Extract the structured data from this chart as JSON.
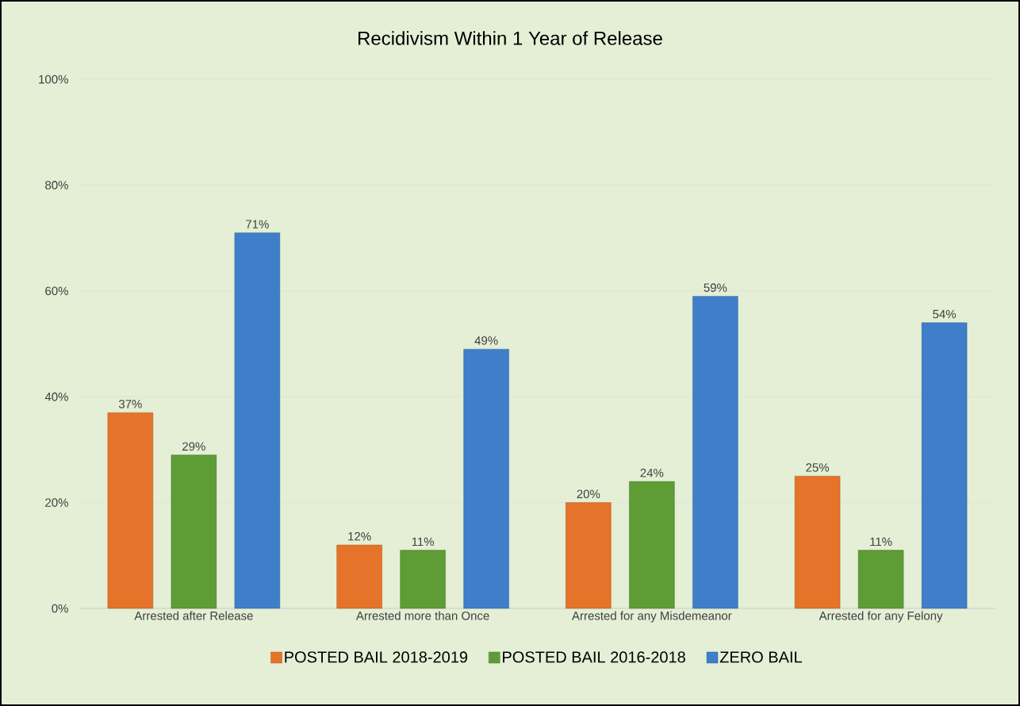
{
  "chart_data": {
    "type": "bar",
    "title": "Recidivism Within 1 Year of Release",
    "categories": [
      "Arrested after Release",
      "Arrested more than Once",
      "Arrested for any Misdemeanor",
      "Arrested for any Felony"
    ],
    "series": [
      {
        "name": "POSTED BAIL 2018-2019",
        "color": "#e5732a",
        "values": [
          37,
          12,
          20,
          25
        ],
        "value_labels": [
          "37%",
          "12%",
          "20%",
          "25%"
        ]
      },
      {
        "name": "POSTED BAIL 2016-2018",
        "color": "#5e9c36",
        "values": [
          29,
          11,
          24,
          11
        ],
        "value_labels": [
          "29%",
          "11%",
          "24%",
          "11%"
        ]
      },
      {
        "name": "ZERO BAIL",
        "color": "#3f7fc9",
        "values": [
          71,
          49,
          59,
          54
        ],
        "value_labels": [
          "71%",
          "49%",
          "59%",
          "54%"
        ]
      }
    ],
    "ylim": [
      0,
      100
    ],
    "yticks": [
      {
        "value": 0,
        "label": "0%"
      },
      {
        "value": 20,
        "label": "20%"
      },
      {
        "value": 40,
        "label": "40%"
      },
      {
        "value": 60,
        "label": "60%"
      },
      {
        "value": 80,
        "label": "80%"
      },
      {
        "value": 100,
        "label": "100%"
      }
    ],
    "grid": "y",
    "legend": "bottom"
  }
}
